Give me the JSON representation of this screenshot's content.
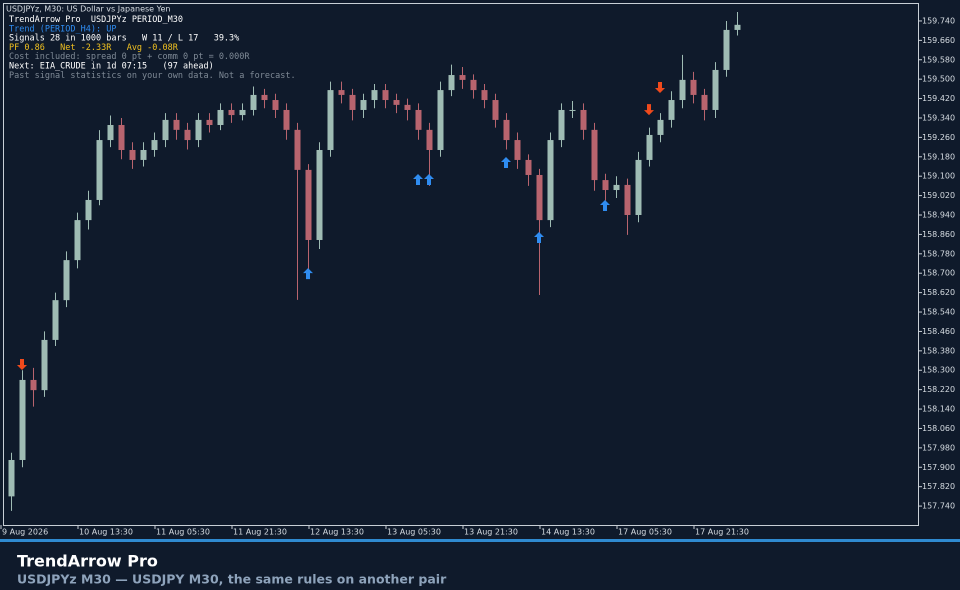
{
  "chart_data": {
    "type": "candlestick",
    "title": "USDJPYz, M30:  US Dollar vs Japanese Yen",
    "info_lines": [
      {
        "text": "TrendArrow Pro  USDJPYz PERIOD_M30",
        "color": "#ffffff"
      },
      {
        "text": "Trend (PERIOD_H4): UP",
        "color": "#2f8cf0"
      },
      {
        "text": "Signals 28 in 1000 bars   W 11 / L 17   39.3%",
        "color": "#ffffff"
      },
      {
        "text": "PF 0.86   Net -2.33R   Avg -0.08R",
        "color": "#f0c020"
      },
      {
        "text": "Cost included: spread 0 pt + comm 0 pt = 0.000R",
        "color": "#7f8a96"
      },
      {
        "text": "Next: EIA_CRUDE in 1d 07:15   (97 ahead)",
        "color": "#ffffff"
      },
      {
        "text": "Past signal statistics on your own data. Not a forecast.",
        "color": "#7f8a96"
      }
    ],
    "categories": [
      "9 Aug 2026",
      null,
      null,
      null,
      null,
      null,
      null,
      "10 Aug 13:30",
      null,
      null,
      null,
      null,
      null,
      null,
      "11 Aug 05:30",
      null,
      null,
      null,
      null,
      null,
      null,
      "11 Aug 21:30",
      null,
      null,
      null,
      null,
      null,
      null,
      "12 Aug 13:30",
      null,
      null,
      null,
      null,
      null,
      null,
      "13 Aug 05:30",
      null,
      null,
      null,
      null,
      null,
      null,
      "13 Aug 21:30",
      null,
      null,
      null,
      null,
      null,
      null,
      "14 Aug 13:30",
      null,
      null,
      null,
      null,
      null,
      null,
      "17 Aug 05:30",
      null,
      null,
      null,
      null,
      null,
      null,
      "17 Aug 21:30",
      null,
      null,
      null
    ],
    "open": [
      157.78,
      157.93,
      158.26,
      158.218,
      158.425,
      158.589,
      158.754,
      158.919,
      159.002,
      159.249,
      159.311,
      159.208,
      159.167,
      159.208,
      159.249,
      159.332,
      159.291,
      159.249,
      159.332,
      159.311,
      159.373,
      159.352,
      159.373,
      159.435,
      159.414,
      159.373,
      159.291,
      159.126,
      158.837,
      159.208,
      159.455,
      159.435,
      159.373,
      159.414,
      159.455,
      159.414,
      159.394,
      159.373,
      159.291,
      159.208,
      159.455,
      159.517,
      159.497,
      159.455,
      159.414,
      159.332,
      159.249,
      159.167,
      159.105,
      158.919,
      159.249,
      159.373,
      159.373,
      159.291,
      159.084,
      159.043,
      159.064,
      158.94,
      159.167,
      159.27,
      159.332,
      159.414,
      159.497,
      159.435,
      159.373,
      159.538,
      159.703
    ],
    "high": [
      157.96,
      158.3,
      158.31,
      158.46,
      158.62,
      158.79,
      158.95,
      159.04,
      159.29,
      159.35,
      159.34,
      159.24,
      159.24,
      159.28,
      159.36,
      159.36,
      159.32,
      159.36,
      159.36,
      159.4,
      159.4,
      159.4,
      159.47,
      159.46,
      159.44,
      159.4,
      159.32,
      159.15,
      159.24,
      159.49,
      159.49,
      159.46,
      159.44,
      159.48,
      159.48,
      159.44,
      159.42,
      159.4,
      159.32,
      159.49,
      159.56,
      159.55,
      159.52,
      159.48,
      159.44,
      159.36,
      159.28,
      159.19,
      159.13,
      159.28,
      159.4,
      159.41,
      159.4,
      159.32,
      159.11,
      159.1,
      159.09,
      159.2,
      159.3,
      159.36,
      159.45,
      159.6,
      159.53,
      159.46,
      159.57,
      159.74,
      159.777
    ],
    "low": [
      157.72,
      157.9,
      158.15,
      158.19,
      158.4,
      158.56,
      158.72,
      158.88,
      158.98,
      159.22,
      159.17,
      159.13,
      159.14,
      159.18,
      159.22,
      159.25,
      159.21,
      159.22,
      159.28,
      159.29,
      159.32,
      159.33,
      159.35,
      159.38,
      159.34,
      159.25,
      158.59,
      158.713,
      158.8,
      159.18,
      159.4,
      159.33,
      159.34,
      159.38,
      159.38,
      159.36,
      159.33,
      159.25,
      159.06,
      159.18,
      159.43,
      159.46,
      159.42,
      159.38,
      159.3,
      159.21,
      159.13,
      159.06,
      158.61,
      158.89,
      159.22,
      159.34,
      159.25,
      159.04,
      159.0,
      159.01,
      158.858,
      158.91,
      159.14,
      159.24,
      159.3,
      159.38,
      159.4,
      159.33,
      159.34,
      159.51,
      159.68
    ],
    "close": [
      157.93,
      158.26,
      158.218,
      158.425,
      158.589,
      158.754,
      158.919,
      159.002,
      159.249,
      159.311,
      159.208,
      159.167,
      159.208,
      159.249,
      159.332,
      159.291,
      159.249,
      159.332,
      159.311,
      159.373,
      159.352,
      159.373,
      159.435,
      159.414,
      159.373,
      159.291,
      159.126,
      158.837,
      159.208,
      159.455,
      159.435,
      159.373,
      159.414,
      159.455,
      159.414,
      159.394,
      159.373,
      159.291,
      159.208,
      159.455,
      159.517,
      159.497,
      159.455,
      159.414,
      159.332,
      159.249,
      159.167,
      159.105,
      158.919,
      159.249,
      159.373,
      159.373,
      159.291,
      159.084,
      159.043,
      159.064,
      158.94,
      159.167,
      159.27,
      159.332,
      159.414,
      159.497,
      159.435,
      159.373,
      159.538,
      159.703,
      159.724
    ],
    "up_color": "#9fbcb4",
    "down_color": "#b8646e",
    "up_arrows": {
      "color": "#2f8cf0",
      "x": [
        27,
        37,
        38,
        45,
        48,
        54
      ],
      "values": [
        158.721,
        159.109,
        159.109,
        159.179,
        158.87,
        159.002
      ]
    },
    "down_arrows": {
      "color": "#f04a1c",
      "x": [
        1,
        58,
        59
      ],
      "values": [
        158.301,
        159.352,
        159.443
      ]
    },
    "ylim": [
      157.662,
      159.814
    ],
    "yticks": [
      {
        "value": 157.74,
        "label": "157.740"
      },
      {
        "value": 157.82,
        "label": "157.820"
      },
      {
        "value": 157.9,
        "label": "157.900"
      },
      {
        "value": 157.98,
        "label": "157.980"
      },
      {
        "value": 158.06,
        "label": "158.060"
      },
      {
        "value": 158.14,
        "label": "158.140"
      },
      {
        "value": 158.22,
        "label": "158.220"
      },
      {
        "value": 158.3,
        "label": "158.300"
      },
      {
        "value": 158.38,
        "label": "158.380"
      },
      {
        "value": 158.46,
        "label": "158.460"
      },
      {
        "value": 158.54,
        "label": "158.540"
      },
      {
        "value": 158.62,
        "label": "158.620"
      },
      {
        "value": 158.7,
        "label": "158.700"
      },
      {
        "value": 158.78,
        "label": "158.780"
      },
      {
        "value": 158.86,
        "label": "158.860"
      },
      {
        "value": 158.94,
        "label": "158.940"
      },
      {
        "value": 159.02,
        "label": "159.020"
      },
      {
        "value": 159.1,
        "label": "159.100"
      },
      {
        "value": 159.18,
        "label": "159.180"
      },
      {
        "value": 159.26,
        "label": "159.260"
      },
      {
        "value": 159.34,
        "label": "159.340"
      },
      {
        "value": 159.42,
        "label": "159.420"
      },
      {
        "value": 159.5,
        "label": "159.500"
      },
      {
        "value": 159.58,
        "label": "159.580"
      },
      {
        "value": 159.66,
        "label": "159.660"
      },
      {
        "value": 159.74,
        "label": "159.740"
      }
    ],
    "grid": false
  },
  "footer": {
    "title": "TrendArrow Pro",
    "subtitle": "USDJPYz  M30  —  USDJPY M30, the same rules on another pair"
  }
}
